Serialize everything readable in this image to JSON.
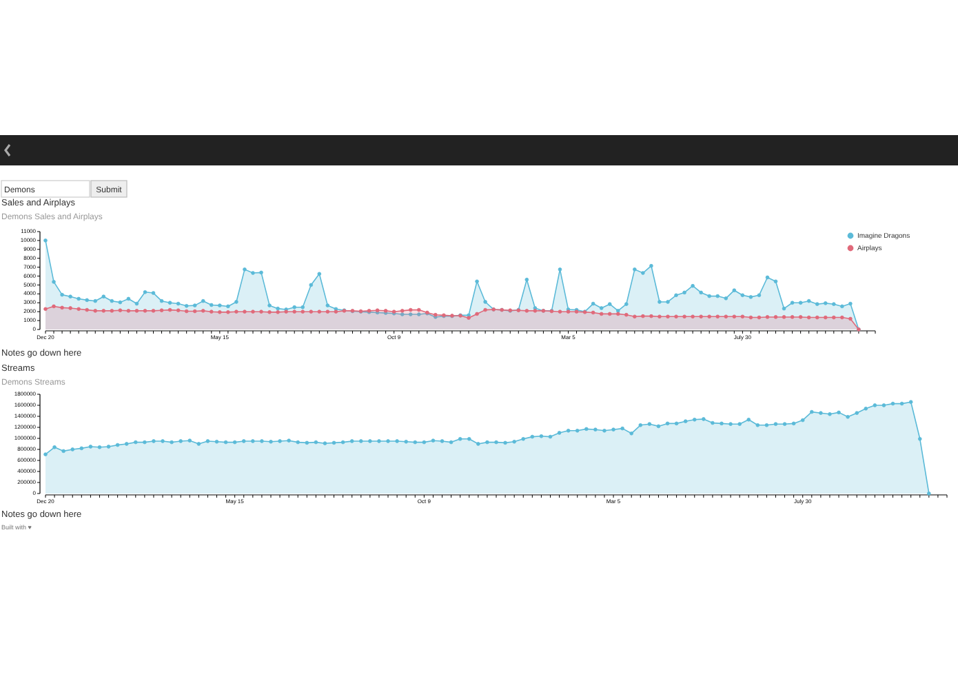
{
  "chart_data": [
    {
      "type": "area",
      "title": "Sales and Airplays",
      "subtitle": "Demons Sales and Airplays",
      "annotations": [
        "Demons",
        "Submit",
        "Notes go down here"
      ],
      "categories": [
        "Dec 20",
        null,
        null,
        null,
        null,
        null,
        null,
        null,
        null,
        null,
        null,
        null,
        null,
        null,
        null,
        null,
        null,
        null,
        null,
        null,
        null,
        "May 15",
        null,
        null,
        null,
        null,
        null,
        null,
        null,
        null,
        null,
        null,
        null,
        null,
        null,
        null,
        null,
        null,
        null,
        null,
        null,
        null,
        "Oct 9",
        null,
        null,
        null,
        null,
        null,
        null,
        null,
        null,
        null,
        null,
        null,
        null,
        null,
        null,
        null,
        null,
        null,
        null,
        null,
        null,
        "Mar 5",
        null,
        null,
        null,
        null,
        null,
        null,
        null,
        null,
        null,
        null,
        null,
        null,
        null,
        null,
        null,
        null,
        null,
        null,
        null,
        null,
        "July 30",
        null,
        null,
        null,
        null,
        null,
        null,
        null,
        null,
        null,
        null,
        null,
        null,
        null,
        null,
        null,
        null
      ],
      "series": [
        {
          "name": "Imagine Dragons",
          "color": "#5bbad8",
          "values": [
            10000,
            5350,
            3900,
            3700,
            3450,
            3300,
            3200,
            3700,
            3200,
            3050,
            3450,
            2900,
            4200,
            4100,
            3200,
            3000,
            2900,
            2650,
            2700,
            3200,
            2750,
            2700,
            2600,
            3100,
            6750,
            6350,
            6400,
            2700,
            2350,
            2250,
            2500,
            2500,
            5000,
            6250,
            2700,
            2300,
            2150,
            2050,
            2000,
            1950,
            1900,
            1850,
            1800,
            1700,
            1700,
            1700,
            1800,
            1400,
            1500,
            1500,
            1600,
            1600,
            5400,
            3100,
            2250,
            2200,
            2100,
            2200,
            5600,
            2400,
            2100,
            2100,
            6750,
            2250,
            2200,
            2000,
            2900,
            2400,
            2850,
            2100,
            2850,
            6750,
            6350,
            7150,
            3100,
            3100,
            3850,
            4150,
            4900,
            4150,
            3750,
            3750,
            3500,
            4400,
            3850,
            3650,
            3850,
            5850,
            5400,
            2350,
            3000,
            3000,
            3200,
            2850,
            2950,
            2850,
            2600,
            2900,
            0,
            null,
            null
          ]
        },
        {
          "name": "Airplays",
          "color": "#e0697a",
          "values": [
            2300,
            2600,
            2450,
            2400,
            2300,
            2200,
            2100,
            2100,
            2100,
            2150,
            2100,
            2100,
            2100,
            2100,
            2150,
            2200,
            2150,
            2050,
            2050,
            2100,
            2000,
            1950,
            1950,
            2000,
            2000,
            2000,
            2000,
            1950,
            1950,
            2000,
            2000,
            2000,
            2000,
            2000,
            2000,
            2000,
            2100,
            2100,
            2050,
            2100,
            2150,
            2100,
            2000,
            2100,
            2200,
            2200,
            1900,
            1650,
            1600,
            1550,
            1550,
            1300,
            1750,
            2200,
            2250,
            2200,
            2150,
            2150,
            2100,
            2100,
            2100,
            2050,
            2000,
            2000,
            2000,
            1950,
            1900,
            1750,
            1750,
            1750,
            1650,
            1450,
            1500,
            1500,
            1450,
            1450,
            1450,
            1450,
            1450,
            1450,
            1450,
            1450,
            1450,
            1450,
            1450,
            1350,
            1350,
            1400,
            1400,
            1400,
            1400,
            1400,
            1350,
            1350,
            1350,
            1350,
            1350,
            1200,
            0,
            null,
            null
          ]
        }
      ],
      "ylim": [
        0,
        11000
      ],
      "yticks": [
        0,
        1000,
        2000,
        3000,
        4000,
        5000,
        6000,
        7000,
        8000,
        9000,
        10000,
        11000
      ],
      "marker": "circle",
      "legend": "top right"
    },
    {
      "type": "area",
      "title": "Streams",
      "subtitle": "Demons Streams",
      "annotations": [
        "Notes go down here",
        "Built with ♥"
      ],
      "categories": [
        "Dec 20",
        null,
        null,
        null,
        null,
        null,
        null,
        null,
        null,
        null,
        null,
        null,
        null,
        null,
        null,
        null,
        null,
        null,
        null,
        null,
        null,
        "May 15",
        null,
        null,
        null,
        null,
        null,
        null,
        null,
        null,
        null,
        null,
        null,
        null,
        null,
        null,
        null,
        null,
        null,
        null,
        null,
        null,
        "Oct 9",
        null,
        null,
        null,
        null,
        null,
        null,
        null,
        null,
        null,
        null,
        null,
        null,
        null,
        null,
        null,
        null,
        null,
        null,
        null,
        null,
        "Mar 5",
        null,
        null,
        null,
        null,
        null,
        null,
        null,
        null,
        null,
        null,
        null,
        null,
        null,
        null,
        null,
        null,
        null,
        null,
        null,
        null,
        "July 30",
        null,
        null,
        null,
        null,
        null,
        null,
        null,
        null,
        null,
        null,
        null,
        null,
        null,
        null,
        null,
        null
      ],
      "series": [
        {
          "color": "#5bbad8",
          "values": [
            710000,
            840000,
            770000,
            800000,
            820000,
            850000,
            840000,
            850000,
            880000,
            900000,
            930000,
            930000,
            950000,
            950000,
            930000,
            950000,
            960000,
            900000,
            950000,
            940000,
            930000,
            930000,
            950000,
            950000,
            950000,
            940000,
            950000,
            960000,
            930000,
            920000,
            930000,
            910000,
            920000,
            930000,
            950000,
            950000,
            950000,
            950000,
            950000,
            950000,
            940000,
            930000,
            930000,
            960000,
            950000,
            930000,
            990000,
            990000,
            900000,
            930000,
            930000,
            920000,
            940000,
            990000,
            1030000,
            1040000,
            1030000,
            1100000,
            1140000,
            1140000,
            1170000,
            1160000,
            1140000,
            1160000,
            1180000,
            1090000,
            1240000,
            1260000,
            1220000,
            1270000,
            1270000,
            1310000,
            1340000,
            1350000,
            1280000,
            1270000,
            1260000,
            1260000,
            1340000,
            1240000,
            1240000,
            1260000,
            1260000,
            1270000,
            1330000,
            1480000,
            1460000,
            1440000,
            1470000,
            1390000,
            1460000,
            1540000,
            1600000,
            1600000,
            1630000,
            1630000,
            1660000,
            990000,
            0,
            null,
            null
          ]
        }
      ],
      "ylim": [
        0,
        1800000
      ],
      "yticks": [
        0,
        200000,
        400000,
        600000,
        800000,
        1000000,
        1200000,
        1400000,
        1600000,
        1800000
      ],
      "marker": "circle"
    }
  ]
}
